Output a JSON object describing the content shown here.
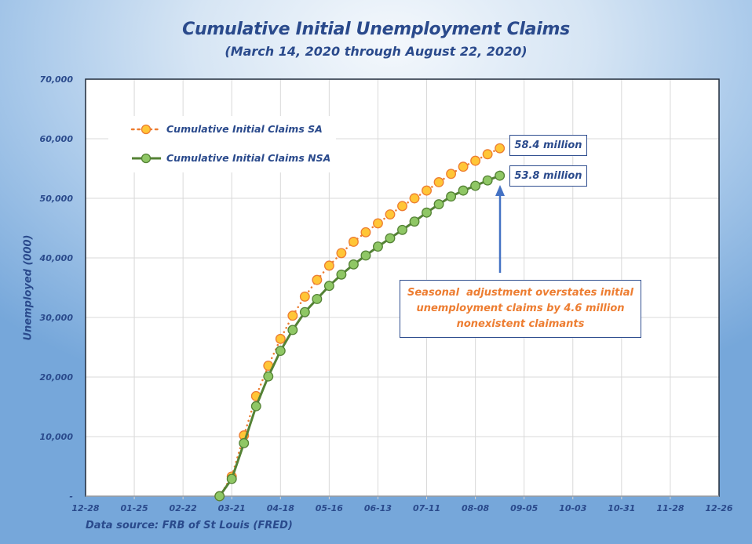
{
  "chart_data": {
    "type": "line",
    "title": "Cumulative Initial Unemployment Claims",
    "subtitle": "(March 14, 2020 through August 22, 2020)",
    "xlabel": "",
    "ylabel": "Unemployed (000)",
    "ylim": [
      0,
      70000
    ],
    "y_ticks": [
      "-",
      "10,000",
      "20,000",
      "30,000",
      "40,000",
      "50,000",
      "60,000",
      "70,000"
    ],
    "x_ticks": [
      "12-28",
      "01-25",
      "02-22",
      "03-21",
      "04-18",
      "05-16",
      "06-13",
      "07-11",
      "08-08",
      "09-05",
      "10-03",
      "10-31",
      "11-28",
      "12-26"
    ],
    "grid": true,
    "legend_position": "upper-left",
    "x": [
      "03-14",
      "03-21",
      "03-28",
      "04-04",
      "04-11",
      "04-18",
      "04-25",
      "05-02",
      "05-09",
      "05-16",
      "05-23",
      "05-30",
      "06-06",
      "06-13",
      "06-20",
      "06-27",
      "07-04",
      "07-11",
      "07-18",
      "07-25",
      "08-01",
      "08-08",
      "08-15",
      "08-22"
    ],
    "series": [
      {
        "name": "Cumulative Initial Claims SA",
        "color": "#ed7d31",
        "marker_fill": "#ffc637",
        "style": "dotted",
        "values": [
          0,
          3300,
          10200,
          16800,
          21900,
          26400,
          30300,
          33500,
          36300,
          38700,
          40800,
          42700,
          44300,
          45800,
          47300,
          48700,
          50000,
          51300,
          52700,
          54100,
          55300,
          56300,
          57400,
          58400
        ]
      },
      {
        "name": "Cumulative Initial Claims NSA",
        "color": "#548235",
        "marker_fill": "#8fc765",
        "style": "solid",
        "values": [
          0,
          2900,
          8900,
          15100,
          20100,
          24400,
          27900,
          30900,
          33100,
          35300,
          37200,
          38900,
          40400,
          41900,
          43300,
          44700,
          46100,
          47600,
          49000,
          50300,
          51300,
          52100,
          53000,
          53800
        ]
      }
    ],
    "annotations": [
      {
        "text": "58.4 million",
        "target_series": "Cumulative Initial Claims SA"
      },
      {
        "text": "53.8 million",
        "target_series": "Cumulative Initial Claims NSA"
      },
      {
        "text": "Seasonal  adjustment overstates initial unemployment claims by 4.6 million nonexistent claimants",
        "color": "#ed7d31"
      }
    ]
  },
  "header": {
    "title": "Cumulative Initial Unemployment Claims",
    "subtitle": "(March 14, 2020 through August 22, 2020)"
  },
  "axis": {
    "y_title": "Unemployed (000)"
  },
  "labels": {
    "sa_end": "58.4 million",
    "nsa_end": "53.8 million",
    "note_line1": "Seasonal  adjustment overstates initial",
    "note_line2": "unemployment claims by 4.6 million",
    "note_line3": "nonexistent claimants"
  },
  "footer": {
    "source": "Data source: FRB of St Louis (FRED)"
  },
  "colors": {
    "title": "#2a4a8c",
    "sa_line": "#ed7d31",
    "sa_marker": "#ffc637",
    "nsa_line": "#548235",
    "nsa_marker": "#8fc765",
    "arrow": "#4472c4"
  }
}
